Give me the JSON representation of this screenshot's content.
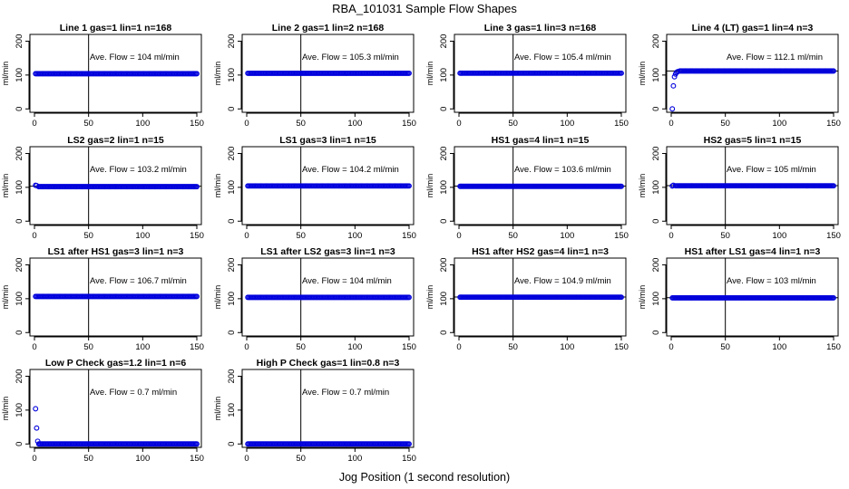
{
  "figure": {
    "title": "RBA_101031  Sample Flow Shapes",
    "xlabel": "Jog Position (1 second resolution)"
  },
  "chart_data": [
    {
      "type": "scatter",
      "title": "Line 1 gas=1 lin=1 n=168",
      "ylabel": "ml/min",
      "xlim": [
        0,
        150
      ],
      "ylim": [
        -10,
        220
      ],
      "xticks": [
        0,
        50,
        100,
        150
      ],
      "yticks": [
        0,
        100,
        200
      ],
      "vline": 50,
      "hline": null,
      "annotation": "Ave. Flow =  104  ml/min",
      "series": [
        {
          "x": [
            1,
            150
          ],
          "y": [
            104,
            104
          ],
          "start": []
        }
      ]
    },
    {
      "type": "scatter",
      "title": "Line 2 gas=1 lin=2 n=168",
      "ylabel": "ml/min",
      "xlim": [
        0,
        150
      ],
      "ylim": [
        -10,
        220
      ],
      "xticks": [
        0,
        50,
        100,
        150
      ],
      "yticks": [
        0,
        100,
        200
      ],
      "vline": 50,
      "hline": null,
      "annotation": "Ave. Flow =  105.3  ml/min",
      "series": [
        {
          "x": [
            1,
            150
          ],
          "y": [
            105.3,
            105.3
          ],
          "start": []
        }
      ]
    },
    {
      "type": "scatter",
      "title": "Line 3 gas=1 lin=3 n=168",
      "ylabel": "ml/min",
      "xlim": [
        0,
        150
      ],
      "ylim": [
        -10,
        220
      ],
      "xticks": [
        0,
        50,
        100,
        150
      ],
      "yticks": [
        0,
        100,
        200
      ],
      "vline": 50,
      "hline": null,
      "annotation": "Ave. Flow =  105.4  ml/min",
      "series": [
        {
          "x": [
            1,
            150
          ],
          "y": [
            105.4,
            105.4
          ],
          "start": []
        }
      ]
    },
    {
      "type": "scatter",
      "title": "Line 4 (LT) gas=1 lin=4 n=3",
      "ylabel": "ml/min",
      "xlim": [
        0,
        150
      ],
      "ylim": [
        -10,
        220
      ],
      "xticks": [
        0,
        50,
        100,
        150
      ],
      "yticks": [
        0,
        100,
        200
      ],
      "vline": null,
      "hline": 112.1,
      "annotation": "Ave. Flow =  112.1  ml/min",
      "series": [
        {
          "x": [
            8,
            150
          ],
          "y": [
            112,
            112
          ],
          "start": [
            [
              1,
              0
            ],
            [
              2,
              68
            ],
            [
              3,
              95
            ],
            [
              4,
              103
            ],
            [
              5,
              108
            ],
            [
              6,
              110
            ]
          ]
        }
      ]
    },
    {
      "type": "scatter",
      "title": "LS2 gas=2 lin=1 n=15",
      "ylabel": "ml/min",
      "xlim": [
        0,
        150
      ],
      "ylim": [
        -10,
        220
      ],
      "xticks": [
        0,
        50,
        100,
        150
      ],
      "yticks": [
        0,
        100,
        200
      ],
      "vline": 50,
      "hline": 103.2,
      "annotation": "Ave. Flow =  103.2  ml/min",
      "series": [
        {
          "x": [
            4,
            150
          ],
          "y": [
            102,
            102
          ],
          "start": [
            [
              1,
              106
            ],
            [
              2,
              105
            ]
          ]
        }
      ]
    },
    {
      "type": "scatter",
      "title": "LS1 gas=3 lin=1 n=15",
      "ylabel": "ml/min",
      "xlim": [
        0,
        150
      ],
      "ylim": [
        -10,
        220
      ],
      "xticks": [
        0,
        50,
        100,
        150
      ],
      "yticks": [
        0,
        100,
        200
      ],
      "vline": 50,
      "hline": null,
      "annotation": "Ave. Flow =  104.2  ml/min",
      "series": [
        {
          "x": [
            1,
            150
          ],
          "y": [
            104.2,
            104.2
          ],
          "start": []
        }
      ]
    },
    {
      "type": "scatter",
      "title": "HS1 gas=4 lin=1 n=15",
      "ylabel": "ml/min",
      "xlim": [
        0,
        150
      ],
      "ylim": [
        -10,
        220
      ],
      "xticks": [
        0,
        50,
        100,
        150
      ],
      "yticks": [
        0,
        100,
        200
      ],
      "vline": 50,
      "hline": 103.6,
      "annotation": "Ave. Flow =  103.6  ml/min",
      "series": [
        {
          "x": [
            1,
            150
          ],
          "y": [
            103,
            103
          ],
          "start": []
        }
      ]
    },
    {
      "type": "scatter",
      "title": "HS2 gas=5 lin=1 n=15",
      "ylabel": "ml/min",
      "xlim": [
        0,
        150
      ],
      "ylim": [
        -10,
        220
      ],
      "xticks": [
        0,
        50,
        100,
        150
      ],
      "yticks": [
        0,
        100,
        200
      ],
      "vline": 50,
      "hline": 105,
      "annotation": "Ave. Flow =  105  ml/min",
      "series": [
        {
          "x": [
            4,
            150
          ],
          "y": [
            104.5,
            104.5
          ],
          "start": [
            [
              1,
              104
            ],
            [
              2,
              106
            ]
          ]
        }
      ]
    },
    {
      "type": "scatter",
      "title": "LS1 after HS1 gas=3 lin=1 n=3",
      "ylabel": "ml/min",
      "xlim": [
        0,
        150
      ],
      "ylim": [
        -10,
        220
      ],
      "xticks": [
        0,
        50,
        100,
        150
      ],
      "yticks": [
        0,
        100,
        200
      ],
      "vline": 50,
      "hline": null,
      "annotation": "Ave. Flow =  106.7  ml/min",
      "series": [
        {
          "x": [
            1,
            150
          ],
          "y": [
            106.7,
            106.7
          ],
          "start": []
        }
      ]
    },
    {
      "type": "scatter",
      "title": "LS1 after LS2 gas=3 lin=1 n=3",
      "ylabel": "ml/min",
      "xlim": [
        0,
        150
      ],
      "ylim": [
        -10,
        220
      ],
      "xticks": [
        0,
        50,
        100,
        150
      ],
      "yticks": [
        0,
        100,
        200
      ],
      "vline": 50,
      "hline": null,
      "annotation": "Ave. Flow =  104  ml/min",
      "series": [
        {
          "x": [
            1,
            150
          ],
          "y": [
            104,
            104
          ],
          "start": []
        }
      ]
    },
    {
      "type": "scatter",
      "title": "HS1 after HS2 gas=4 lin=1 n=3",
      "ylabel": "ml/min",
      "xlim": [
        0,
        150
      ],
      "ylim": [
        -10,
        220
      ],
      "xticks": [
        0,
        50,
        100,
        150
      ],
      "yticks": [
        0,
        100,
        200
      ],
      "vline": 50,
      "hline": 104.9,
      "annotation": "Ave. Flow =  104.9  ml/min",
      "series": [
        {
          "x": [
            1,
            150
          ],
          "y": [
            104.5,
            104.5
          ],
          "start": []
        }
      ]
    },
    {
      "type": "scatter",
      "title": "HS1 after LS1 gas=4 lin=1 n=3",
      "ylabel": "ml/min",
      "xlim": [
        0,
        150
      ],
      "ylim": [
        -10,
        220
      ],
      "xticks": [
        0,
        50,
        100,
        150
      ],
      "yticks": [
        0,
        100,
        200
      ],
      "vline": 50,
      "hline": 103,
      "annotation": "Ave. Flow =  103  ml/min",
      "series": [
        {
          "x": [
            1,
            150
          ],
          "y": [
            102.5,
            102.5
          ],
          "start": []
        }
      ]
    },
    {
      "type": "scatter",
      "title": "Low P Check gas=1.2 lin=1 n=6",
      "ylabel": "ml/min",
      "xlim": [
        0,
        150
      ],
      "ylim": [
        -10,
        220
      ],
      "xticks": [
        0,
        50,
        100,
        150
      ],
      "yticks": [
        0,
        100,
        200
      ],
      "vline": 50,
      "hline": null,
      "annotation": "Ave. Flow =  0.7  ml/min",
      "series": [
        {
          "x": [
            4,
            150
          ],
          "y": [
            0,
            0
          ],
          "start": [
            [
              1,
              104
            ],
            [
              2,
              47
            ],
            [
              3,
              8
            ]
          ]
        }
      ]
    },
    {
      "type": "scatter",
      "title": "High P Check gas=1 lin=0.8 n=3",
      "ylabel": "ml/min",
      "xlim": [
        0,
        150
      ],
      "ylim": [
        -10,
        220
      ],
      "xticks": [
        0,
        50,
        100,
        150
      ],
      "yticks": [
        0,
        100,
        200
      ],
      "vline": 50,
      "hline": null,
      "annotation": "Ave. Flow =  0.7  ml/min",
      "series": [
        {
          "x": [
            1,
            150
          ],
          "y": [
            0,
            0
          ],
          "start": []
        }
      ]
    }
  ],
  "colors": {
    "points": "#0000dd",
    "axes": "#000000"
  }
}
